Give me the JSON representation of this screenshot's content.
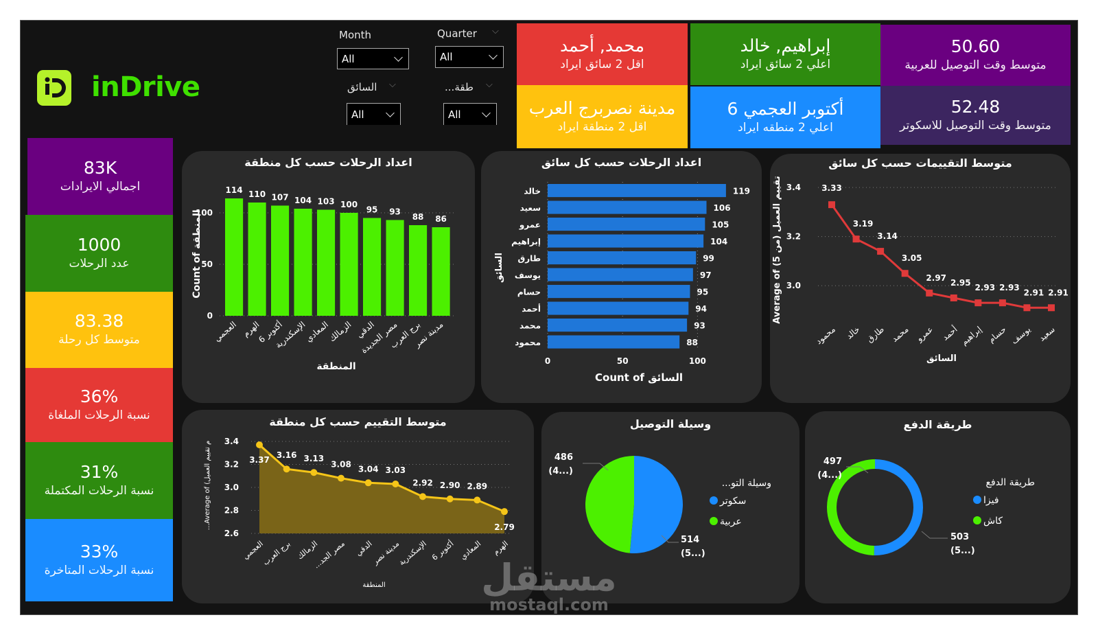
{
  "brand": {
    "name": "inDrive",
    "logo_icon": "indrive-logo-icon",
    "color": "#3fe000"
  },
  "filters": [
    {
      "label": "Month",
      "value": "All"
    },
    {
      "label": "Quarter",
      "value": "All"
    },
    {
      "label": "السائق",
      "value": "All"
    },
    {
      "label": "...طقة",
      "value": "All"
    }
  ],
  "top_cards": [
    {
      "value": "محمد, أحمد",
      "label": "اقل 2 سائق ايراد",
      "color": "#e53935"
    },
    {
      "value": "إبراهيم, خالد",
      "label": "اعلي 2 سائق ايراد",
      "color": "#2e8b0f"
    },
    {
      "value": "50.60",
      "label": "متوسط وقت التوصيل للعربية",
      "color": "#6a0080"
    },
    {
      "value": "مدينة نصربرج العرب",
      "label": "اقل 2 منطقة ايراد",
      "color": "#ffc20e"
    },
    {
      "value": "أكتوبر العجمي 6",
      "label": "اعلي 2 منطقه ايراد",
      "color": "#1a8cff"
    },
    {
      "value": "52.48",
      "label": "متوسط وقت التوصيل للاسكوتر",
      "color": "#3c2560"
    }
  ],
  "kpis": [
    {
      "value": "83K",
      "label": "اجمالي الايرادات",
      "color": "#6a0080"
    },
    {
      "value": "1000",
      "label": "عدد الرحلات",
      "color": "#2e8b0f"
    },
    {
      "value": "83.38",
      "label": "متوسط كل رحلة",
      "color": "#ffc20e"
    },
    {
      "value": "36%",
      "label": "نسبة الرحلات الملغاة",
      "color": "#e53935"
    },
    {
      "value": "31%",
      "label": "نسبة الرحلات المكتملة",
      "color": "#2e8b0f"
    },
    {
      "value": "33%",
      "label": "نسبة الرحلات المتاخرة",
      "color": "#1a8cff"
    }
  ],
  "chart_data": [
    {
      "type": "bar",
      "title": "اعداد الرحلات حسب كل منطقة",
      "categories": [
        "العجمي",
        "الهرم",
        "أكتوبر 6",
        "الإسكندرية",
        "المعادي",
        "الزمالك",
        "الدقي",
        "مصر الجديدة",
        "برج العرب",
        "مدينة نصر"
      ],
      "values": [
        114,
        110,
        107,
        104,
        103,
        100,
        95,
        93,
        88,
        86
      ],
      "xlabel": "المنطقة",
      "ylabel": "Count of المنطقة",
      "yticks": [
        "0",
        "50",
        "100"
      ],
      "ylim": [
        0,
        120
      ],
      "color": "#4cf000",
      "grid": true
    },
    {
      "type": "bar",
      "orientation": "horizontal",
      "title": "اعداد الرحلات حسب كل سائق",
      "categories": [
        "خالد",
        "سعيد",
        "عمرو",
        "إبراهيم",
        "طارق",
        "يوسف",
        "حسام",
        "أحمد",
        "محمد",
        "محمود"
      ],
      "values": [
        119,
        106,
        105,
        104,
        99,
        97,
        95,
        94,
        93,
        88
      ],
      "xlabel": "Count of السائق",
      "ylabel": "السائق",
      "xticks": [
        "0",
        "50",
        "100"
      ],
      "xlim": [
        0,
        125
      ],
      "color": "#1f77d9",
      "grid": true
    },
    {
      "type": "line",
      "title": "متوسط التقييمات حسب كل سائق",
      "categories": [
        "محمود",
        "خالد",
        "طارق",
        "محمد",
        "عمرو",
        "أحمد",
        "إبراهيم",
        "حسام",
        "يوسف",
        "سعيد"
      ],
      "values": [
        3.33,
        3.19,
        3.14,
        3.05,
        2.97,
        2.95,
        2.93,
        2.93,
        2.91,
        2.91
      ],
      "labels": [
        "3.33",
        "3.19",
        "3.14",
        "3.05",
        "2.97",
        "2.95",
        "2.93",
        "2.93",
        "2.91",
        "2.91"
      ],
      "xlabel": "السائق",
      "ylabel": "Average of (5 تقييم العميل (من",
      "yticks": [
        "3.0",
        "3.2",
        "3.4"
      ],
      "ylim": [
        2.88,
        3.42
      ],
      "color": "#e03a3a",
      "grid": true
    },
    {
      "type": "area",
      "title": "متوسط التقييم حسب كل منطقة",
      "categories": [
        "العجمي",
        "برج العرب",
        "الزمالك",
        "...مصر الجد",
        "الدقي",
        "مدينة نصر",
        "الإسكندرية",
        "أكتوبر 6",
        "المعادي",
        "الهرم"
      ],
      "values": [
        3.37,
        3.16,
        3.13,
        3.08,
        3.04,
        3.03,
        2.92,
        2.9,
        2.89,
        2.79
      ],
      "labels": [
        "3.37",
        "3.16",
        "3.13",
        "3.08",
        "3.04",
        "3.03",
        "2.92",
        "2.90",
        "2.89",
        "2.79"
      ],
      "xlabel": "المنطقة",
      "ylabel": "...Average of (م تقييم العميل",
      "yticks": [
        "2.6",
        "2.8",
        "3.0",
        "3.2",
        "3.4"
      ],
      "ylim": [
        2.6,
        3.4
      ],
      "color": "#f5c518",
      "grid": true
    },
    {
      "type": "pie",
      "title": "وسيلة التوصيل",
      "legend_title": "...وسيلة التو",
      "categories": [
        "سكوتر",
        "عربية"
      ],
      "values": [
        514,
        486
      ],
      "data_labels": [
        [
          "514",
          "(5...)"
        ],
        [
          "486",
          "(4...)"
        ]
      ],
      "colors": [
        "#1a8cff",
        "#4cf000"
      ]
    },
    {
      "type": "pie",
      "donut": true,
      "title": "طريقة الدفع",
      "legend_title": "طريقة الدفع",
      "categories": [
        "فيزا",
        "كاش"
      ],
      "values": [
        503,
        497
      ],
      "data_labels": [
        [
          "503",
          "(5...)"
        ],
        [
          "497",
          "(4...)"
        ]
      ],
      "colors": [
        "#1a8cff",
        "#4cf000"
      ]
    }
  ],
  "watermark": {
    "arabic": "مستقل",
    "latin": "mostaql.com"
  }
}
